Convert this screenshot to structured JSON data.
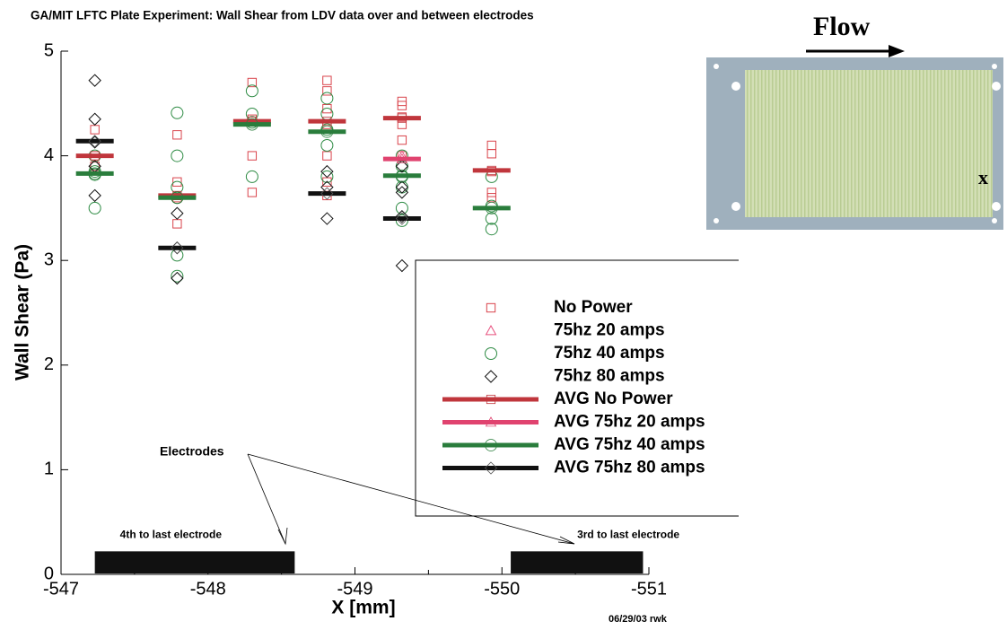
{
  "chart_data": {
    "type": "scatter",
    "title": "GA/MIT LFTC Plate Experiment: Wall Shear from LDV data over and between electrodes",
    "x_label": "X [mm]",
    "y_label": "Wall Shear (Pa)",
    "xlim": [
      -547,
      -551
    ],
    "xticks": [
      -547,
      -548,
      -549,
      -550,
      -551
    ],
    "ylim": [
      0,
      5
    ],
    "yticks": [
      0,
      1,
      2,
      3,
      4,
      5
    ],
    "series": [
      {
        "name": "No Power",
        "color": "#d9434b",
        "marker": "square",
        "style": "points",
        "x": [
          -547.23,
          -547.23,
          -547.23,
          -547.79,
          -547.79,
          -547.79,
          -547.79,
          -548.3,
          -548.3,
          -548.3,
          -548.3,
          -548.81,
          -548.81,
          -548.81,
          -548.81,
          -548.81,
          -548.81,
          -548.81,
          -549.32,
          -549.32,
          -549.32,
          -549.32,
          -549.32,
          -549.32,
          -549.93,
          -549.93,
          -549.93,
          -549.93,
          -549.93
        ],
        "values": [
          4.25,
          4.0,
          3.9,
          4.2,
          3.75,
          3.6,
          3.35,
          4.7,
          4.35,
          4.0,
          3.65,
          4.72,
          4.62,
          4.45,
          4.3,
          4.0,
          3.75,
          3.62,
          4.52,
          4.48,
          4.37,
          4.3,
          4.15,
          4.0,
          4.1,
          4.02,
          3.85,
          3.65,
          3.6
        ]
      },
      {
        "name": "75hz 20 amps",
        "color": "#e8507e",
        "marker": "triangle",
        "style": "points",
        "x": [
          -549.32
        ],
        "values": [
          4.0
        ]
      },
      {
        "name": "75hz 40 amps",
        "color": "#2e8b44",
        "marker": "circle",
        "style": "points",
        "x": [
          -547.23,
          -547.23,
          -547.23,
          -547.23,
          -547.79,
          -547.79,
          -547.79,
          -547.79,
          -547.79,
          -547.79,
          -548.3,
          -548.3,
          -548.3,
          -548.3,
          -548.81,
          -548.81,
          -548.81,
          -548.81,
          -548.81,
          -549.32,
          -549.32,
          -549.32,
          -549.32,
          -549.32,
          -549.32,
          -549.93,
          -549.93,
          -549.93,
          -549.93
        ],
        "values": [
          3.5,
          3.85,
          3.82,
          4.0,
          4.41,
          4.0,
          3.7,
          3.6,
          3.05,
          2.85,
          4.62,
          4.4,
          4.32,
          3.8,
          4.55,
          4.4,
          4.25,
          4.1,
          3.8,
          4.0,
          3.9,
          3.8,
          3.7,
          3.5,
          3.38,
          3.8,
          3.52,
          3.4,
          3.3
        ]
      },
      {
        "name": "75hz 80 amps",
        "color": "#111111",
        "marker": "diamond",
        "style": "points",
        "x": [
          -547.23,
          -547.23,
          -547.23,
          -547.23,
          -547.23,
          -547.79,
          -547.79,
          -547.79,
          -548.81,
          -548.81,
          -548.81,
          -549.32,
          -549.32,
          -549.32,
          -549.32,
          -549.32
        ],
        "values": [
          4.72,
          4.35,
          4.13,
          3.9,
          3.62,
          3.45,
          3.12,
          2.83,
          3.85,
          3.7,
          3.4,
          3.9,
          3.7,
          3.65,
          3.42,
          2.95
        ]
      },
      {
        "name": "AVG No Power",
        "color": "#c0363c",
        "marker": "square",
        "style": "avg",
        "x": [
          -547.23,
          -547.79,
          -548.3,
          -548.81,
          -549.32,
          -549.93
        ],
        "values": [
          4.0,
          3.62,
          4.33,
          4.33,
          4.36,
          3.86
        ]
      },
      {
        "name": "AVG 75hz 20 amps",
        "color": "#e0436f",
        "marker": "triangle",
        "style": "avg",
        "x": [
          -549.32
        ],
        "values": [
          3.97
        ]
      },
      {
        "name": "AVG 75hz 40 amps",
        "color": "#2a7d3c",
        "marker": "circle",
        "style": "avg",
        "x": [
          -547.23,
          -547.79,
          -548.3,
          -548.81,
          -549.32,
          -549.93
        ],
        "values": [
          3.83,
          3.6,
          4.3,
          4.23,
          3.81,
          3.5
        ]
      },
      {
        "name": "AVG 75hz 80 amps",
        "color": "#111111",
        "marker": "diamond",
        "style": "avg",
        "x": [
          -547.23,
          -547.79,
          -548.81,
          -549.32
        ],
        "values": [
          4.14,
          3.12,
          3.64,
          3.4
        ]
      }
    ],
    "electrodes": [
      {
        "label": "4th to last electrode",
        "x": [
          -547.23,
          -548.59
        ],
        "height": 0.22
      },
      {
        "label": "3rd to last electrode",
        "x": [
          -550.06,
          -550.96
        ],
        "height": 0.22
      }
    ],
    "electrodes_annotation": "Electrodes",
    "footnote": "06/29/03 rwk",
    "inset": {
      "flow_label": "Flow",
      "position_label": "x"
    }
  }
}
